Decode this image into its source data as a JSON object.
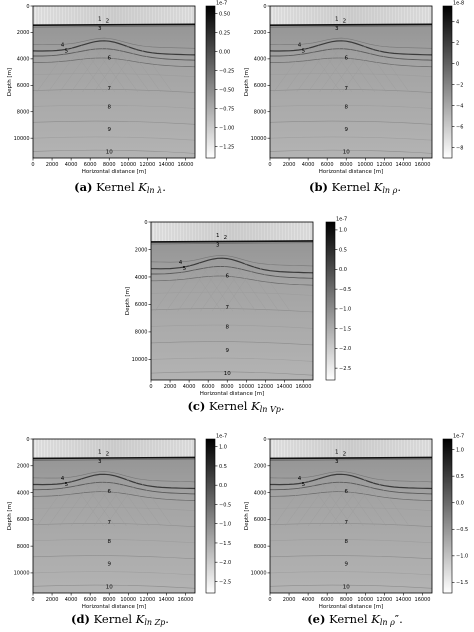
{
  "figure": {
    "panels": [
      {
        "id": "a",
        "caption": {
          "letter": "(a)",
          "text": "Kernel",
          "symbol": "K",
          "subscript": "ln λ",
          "prime": "",
          "tail": "."
        },
        "chart_data": {
          "type": "heatmap",
          "xlabel": "Horizontal distance [m]",
          "ylabel": "Depth [m]",
          "xlim": [
            0,
            17000
          ],
          "ylim": [
            11500,
            0
          ],
          "x_ticks": [
            "0",
            "2000",
            "4000",
            "6000",
            "8000",
            "10000",
            "12000",
            "14000",
            "16000"
          ],
          "x_tick_values": [
            0,
            2000,
            4000,
            6000,
            8000,
            10000,
            12000,
            14000,
            16000
          ],
          "y_ticks": [
            "0",
            "2000",
            "4000",
            "6000",
            "8000",
            "10000"
          ],
          "y_tick_values": [
            0,
            2000,
            4000,
            6000,
            8000,
            10000
          ],
          "colorbar": {
            "exponent": "1e-7",
            "ticks": [
              "0.50",
              "0.25",
              "0.00",
              "−0.25",
              "−0.50",
              "−0.75",
              "−1.00",
              "−1.25"
            ],
            "tick_values": [
              0.5,
              0.25,
              0,
              -0.25,
              -0.5,
              -0.75,
              -1.0,
              -1.25
            ],
            "range": [
              -1.4,
              0.6
            ]
          },
          "annotations": [
            {
              "label": "1",
              "x": 7000,
              "y": 950
            },
            {
              "label": "2",
              "x": 7800,
              "y": 1100
            },
            {
              "label": "3",
              "x": 7000,
              "y": 1650
            },
            {
              "label": "4",
              "x": 3100,
              "y": 2900
            },
            {
              "label": "5",
              "x": 3500,
              "y": 3350
            },
            {
              "label": "6",
              "x": 8000,
              "y": 3900
            },
            {
              "label": "7",
              "x": 8000,
              "y": 6200
            },
            {
              "label": "8",
              "x": 8000,
              "y": 7600
            },
            {
              "label": "9",
              "x": 8000,
              "y": 9300
            },
            {
              "label": "10",
              "x": 8000,
              "y": 11000
            }
          ]
        }
      },
      {
        "id": "b",
        "caption": {
          "letter": "(b)",
          "text": "Kernel",
          "symbol": "K",
          "subscript": "ln ρ",
          "prime": "",
          "tail": "."
        },
        "chart_data": {
          "type": "heatmap",
          "xlabel": "Horizontal distance [m]",
          "ylabel": "Depth [m]",
          "xlim": [
            0,
            17000
          ],
          "ylim": [
            11500,
            0
          ],
          "x_ticks": [
            "0",
            "2000",
            "4000",
            "6000",
            "8000",
            "10000",
            "12000",
            "14000",
            "16000"
          ],
          "x_tick_values": [
            0,
            2000,
            4000,
            6000,
            8000,
            10000,
            12000,
            14000,
            16000
          ],
          "y_ticks": [
            "0",
            "2000",
            "4000",
            "6000",
            "8000",
            "10000"
          ],
          "y_tick_values": [
            0,
            2000,
            4000,
            6000,
            8000,
            10000
          ],
          "colorbar": {
            "exponent": "1e-8",
            "ticks": [
              "4",
              "2",
              "0",
              "−2",
              "−4",
              "−6",
              "−8"
            ],
            "tick_values": [
              4,
              2,
              0,
              -2,
              -4,
              -6,
              -8
            ],
            "range": [
              -9,
              5.5
            ]
          },
          "annotations": [
            {
              "label": "1",
              "x": 7000,
              "y": 950
            },
            {
              "label": "2",
              "x": 7800,
              "y": 1100
            },
            {
              "label": "3",
              "x": 7000,
              "y": 1650
            },
            {
              "label": "4",
              "x": 3100,
              "y": 2900
            },
            {
              "label": "5",
              "x": 3500,
              "y": 3350
            },
            {
              "label": "6",
              "x": 8000,
              "y": 3900
            },
            {
              "label": "7",
              "x": 8000,
              "y": 6200
            },
            {
              "label": "8",
              "x": 8000,
              "y": 7600
            },
            {
              "label": "9",
              "x": 8000,
              "y": 9300
            },
            {
              "label": "10",
              "x": 8000,
              "y": 11000
            }
          ]
        }
      },
      {
        "id": "c",
        "caption": {
          "letter": "(c)",
          "text": "Kernel",
          "symbol": "K",
          "subscript": "ln Vp",
          "prime": "",
          "tail": "."
        },
        "chart_data": {
          "type": "heatmap",
          "xlabel": "Horizontal distance [m]",
          "ylabel": "Depth [m]",
          "xlim": [
            0,
            17000
          ],
          "ylim": [
            11500,
            0
          ],
          "x_ticks": [
            "0",
            "2000",
            "4000",
            "6000",
            "8000",
            "10000",
            "12000",
            "14000",
            "16000"
          ],
          "x_tick_values": [
            0,
            2000,
            4000,
            6000,
            8000,
            10000,
            12000,
            14000,
            16000
          ],
          "y_ticks": [
            "0",
            "2000",
            "4000",
            "6000",
            "8000",
            "10000"
          ],
          "y_tick_values": [
            0,
            2000,
            4000,
            6000,
            8000,
            10000
          ],
          "colorbar": {
            "exponent": "1e-7",
            "ticks": [
              "1.0",
              "0.5",
              "0.0",
              "−0.5",
              "−1.0",
              "−1.5",
              "−2.0",
              "−2.5"
            ],
            "tick_values": [
              1.0,
              0.5,
              0,
              -0.5,
              -1.0,
              -1.5,
              -2.0,
              -2.5
            ],
            "range": [
              -2.8,
              1.2
            ]
          },
          "annotations": [
            {
              "label": "1",
              "x": 7000,
              "y": 950
            },
            {
              "label": "2",
              "x": 7800,
              "y": 1100
            },
            {
              "label": "3",
              "x": 7000,
              "y": 1650
            },
            {
              "label": "4",
              "x": 3100,
              "y": 2900
            },
            {
              "label": "5",
              "x": 3500,
              "y": 3350
            },
            {
              "label": "6",
              "x": 8000,
              "y": 3900
            },
            {
              "label": "7",
              "x": 8000,
              "y": 6200
            },
            {
              "label": "8",
              "x": 8000,
              "y": 7600
            },
            {
              "label": "9",
              "x": 8000,
              "y": 9300
            },
            {
              "label": "10",
              "x": 8000,
              "y": 11000
            }
          ]
        }
      },
      {
        "id": "d",
        "caption": {
          "letter": "(d)",
          "text": "Kernel",
          "symbol": "K",
          "subscript": "ln Zp",
          "prime": "",
          "tail": "."
        },
        "chart_data": {
          "type": "heatmap",
          "xlabel": "Horizontal distance [m]",
          "ylabel": "Depth [m]",
          "xlim": [
            0,
            17000
          ],
          "ylim": [
            11500,
            0
          ],
          "x_ticks": [
            "0",
            "2000",
            "4000",
            "6000",
            "8000",
            "10000",
            "12000",
            "14000",
            "16000"
          ],
          "x_tick_values": [
            0,
            2000,
            4000,
            6000,
            8000,
            10000,
            12000,
            14000,
            16000
          ],
          "y_ticks": [
            "0",
            "2000",
            "4000",
            "6000",
            "8000",
            "10000"
          ],
          "y_tick_values": [
            0,
            2000,
            4000,
            6000,
            8000,
            10000
          ],
          "colorbar": {
            "exponent": "1e-7",
            "ticks": [
              "1.0",
              "0.5",
              "0.0",
              "−0.5",
              "−1.0",
              "−1.5",
              "−2.0",
              "−2.5"
            ],
            "tick_values": [
              1.0,
              0.5,
              0,
              -0.5,
              -1.0,
              -1.5,
              -2.0,
              -2.5
            ],
            "range": [
              -2.8,
              1.2
            ]
          },
          "annotations": [
            {
              "label": "1",
              "x": 7000,
              "y": 950
            },
            {
              "label": "2",
              "x": 7800,
              "y": 1100
            },
            {
              "label": "3",
              "x": 7000,
              "y": 1650
            },
            {
              "label": "4",
              "x": 3100,
              "y": 2900
            },
            {
              "label": "5",
              "x": 3500,
              "y": 3350
            },
            {
              "label": "6",
              "x": 8000,
              "y": 3900
            },
            {
              "label": "7",
              "x": 8000,
              "y": 6200
            },
            {
              "label": "8",
              "x": 8000,
              "y": 7600
            },
            {
              "label": "9",
              "x": 8000,
              "y": 9300
            },
            {
              "label": "10",
              "x": 8000,
              "y": 11000
            }
          ]
        }
      },
      {
        "id": "e",
        "caption": {
          "letter": "(e)",
          "text": "Kernel",
          "symbol": "K",
          "subscript": "ln ρ",
          "prime": "″",
          "tail": "."
        },
        "chart_data": {
          "type": "heatmap",
          "xlabel": "Horizontal distance [m]",
          "ylabel": "Depth [m]",
          "xlim": [
            0,
            17000
          ],
          "ylim": [
            11500,
            0
          ],
          "x_ticks": [
            "0",
            "2000",
            "4000",
            "6000",
            "8000",
            "10000",
            "12000",
            "14000",
            "16000"
          ],
          "x_tick_values": [
            0,
            2000,
            4000,
            6000,
            8000,
            10000,
            12000,
            14000,
            16000
          ],
          "y_ticks": [
            "0",
            "2000",
            "4000",
            "6000",
            "8000",
            "10000"
          ],
          "y_tick_values": [
            0,
            2000,
            4000,
            6000,
            8000,
            10000
          ],
          "colorbar": {
            "exponent": "1e-7",
            "ticks": [
              "1.0",
              "0.5",
              "0.0",
              "−0.5",
              "−1.0",
              "−1.5"
            ],
            "tick_values": [
              1.0,
              0.5,
              0,
              -0.5,
              -1.0,
              -1.5
            ],
            "range": [
              -1.7,
              1.2
            ]
          },
          "annotations": [
            {
              "label": "1",
              "x": 7000,
              "y": 950
            },
            {
              "label": "2",
              "x": 7800,
              "y": 1100
            },
            {
              "label": "3",
              "x": 7000,
              "y": 1650
            },
            {
              "label": "4",
              "x": 3100,
              "y": 2900
            },
            {
              "label": "5",
              "x": 3500,
              "y": 3350
            },
            {
              "label": "6",
              "x": 8000,
              "y": 3900
            },
            {
              "label": "7",
              "x": 8000,
              "y": 6200
            },
            {
              "label": "8",
              "x": 8000,
              "y": 7600
            },
            {
              "label": "9",
              "x": 8000,
              "y": 9300
            },
            {
              "label": "10",
              "x": 8000,
              "y": 11000
            }
          ]
        }
      }
    ]
  }
}
